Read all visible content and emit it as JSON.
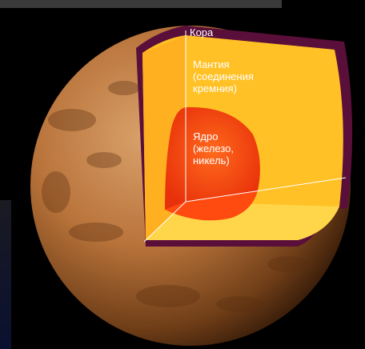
{
  "labels": {
    "crust": "Кора",
    "mantle": [
      "Мантия",
      "(соединения",
      "кремния)"
    ],
    "core": [
      "Ядро",
      "(железо,",
      "никель)"
    ]
  },
  "colors": {
    "background": "#000000",
    "crust": "#5a0f3a",
    "mantle": "#ffc125",
    "mantle_light": "#ffd64a",
    "core": "#ff5a14",
    "core_dark": "#e8300a",
    "surface": "#b8733a",
    "line": "#ffffff"
  }
}
